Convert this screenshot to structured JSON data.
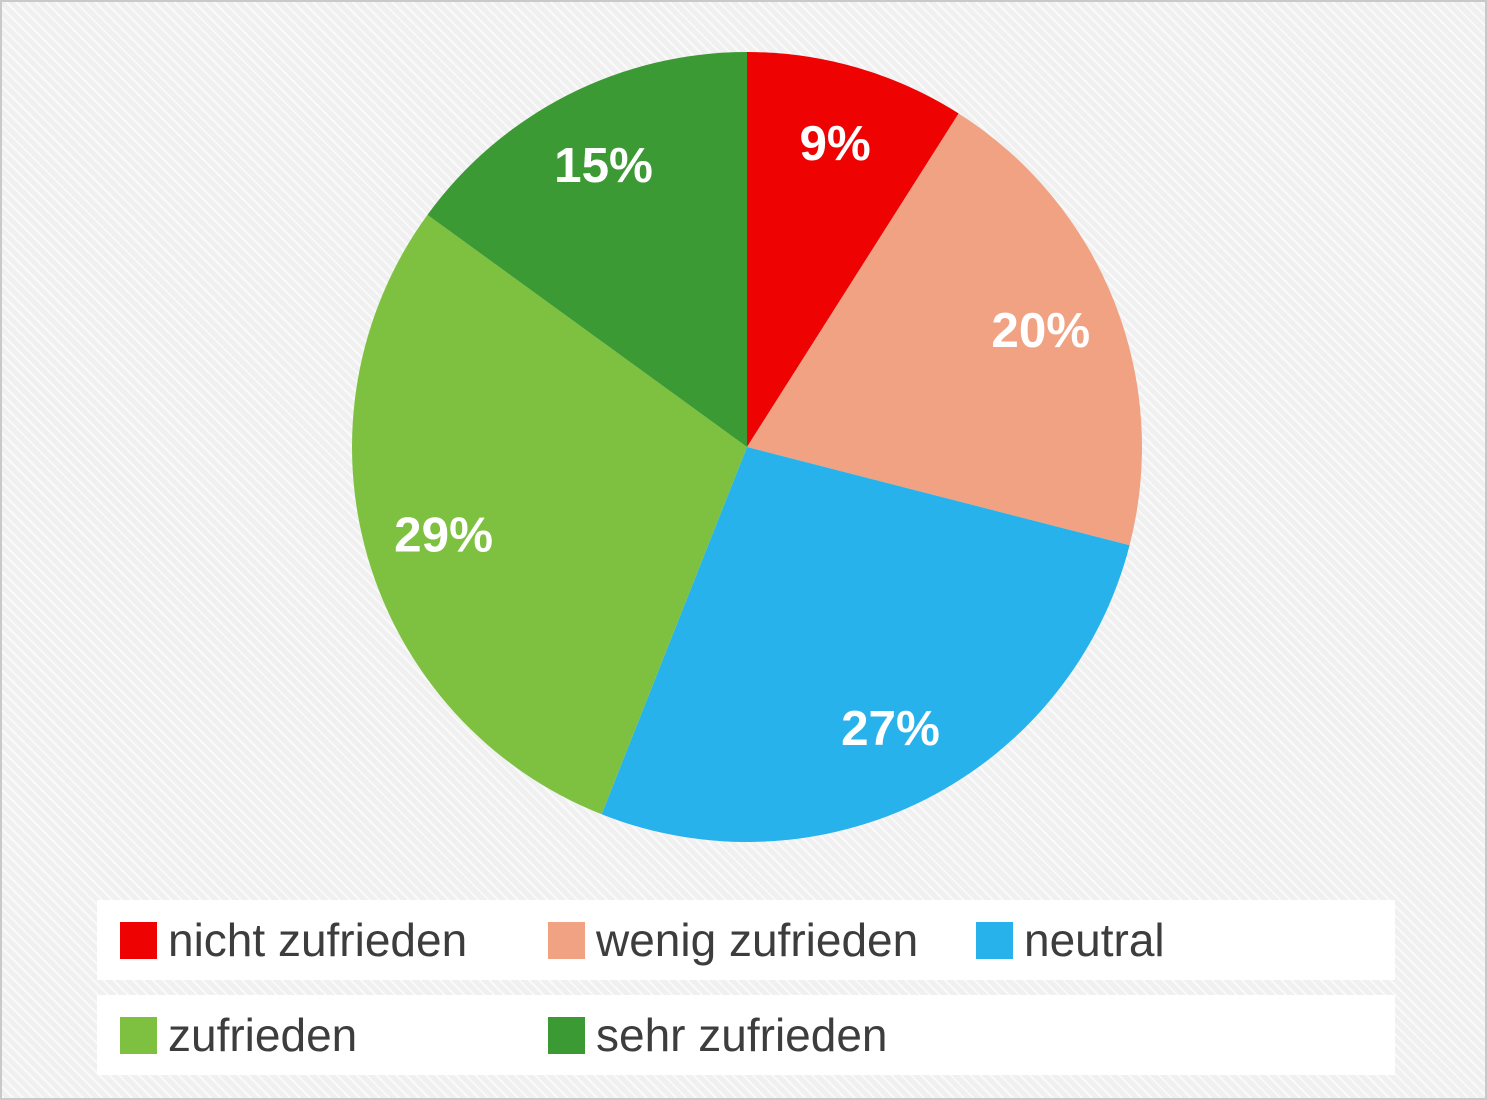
{
  "chart_data": {
    "type": "pie",
    "title": "",
    "categories": [
      "nicht zufrieden",
      "wenig zufrieden",
      "neutral",
      "zufrieden",
      "sehr zufrieden"
    ],
    "values": [
      9,
      20,
      27,
      29,
      15
    ],
    "data_labels": [
      "9%",
      "20%",
      "27%",
      "29%",
      "15%"
    ],
    "colors": [
      "#ee0202",
      "#f0a283",
      "#27b2eb",
      "#7ec141",
      "#3c9a35"
    ],
    "start_angle_deg": 0,
    "direction": "clockwise",
    "legend_position": "bottom",
    "label_color": "#ffffff"
  },
  "legend": {
    "rows": [
      [
        {
          "label": "nicht zufrieden",
          "color": "#ee0202"
        },
        {
          "label": "wenig zufrieden",
          "color": "#f0a283"
        },
        {
          "label": "neutral",
          "color": "#27b2eb"
        }
      ],
      [
        {
          "label": "zufrieden",
          "color": "#7ec141"
        },
        {
          "label": "sehr zufrieden",
          "color": "#3c9a35"
        }
      ]
    ]
  }
}
